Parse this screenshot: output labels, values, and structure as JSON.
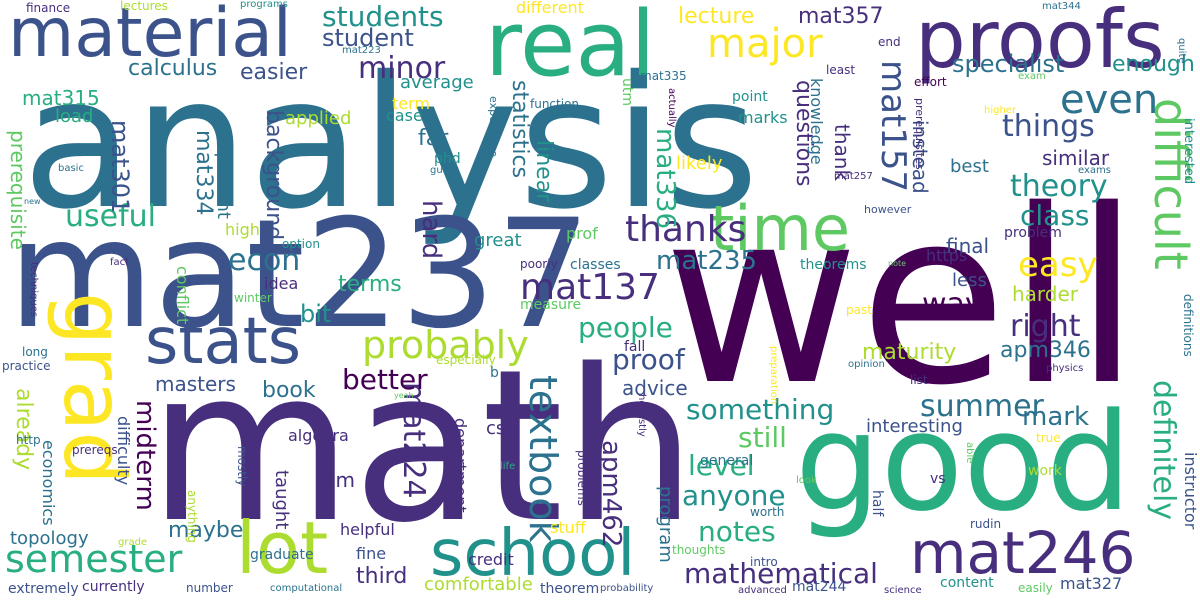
{
  "colors": {
    "background": "#ffffff",
    "palette": [
      "#440154",
      "#472f7d",
      "#3b528b",
      "#2c728e",
      "#21918c",
      "#28ae80",
      "#5ec962",
      "#addc30",
      "#fde725"
    ]
  },
  "words": [
    {
      "text": "analysis"
    },
    {
      "text": "well"
    },
    {
      "text": "math"
    },
    {
      "text": "mat237"
    },
    {
      "text": "good"
    },
    {
      "text": "real"
    },
    {
      "text": "proofs"
    },
    {
      "text": "material"
    },
    {
      "text": "time"
    },
    {
      "text": "grad"
    },
    {
      "text": "stats"
    },
    {
      "text": "lot"
    },
    {
      "text": "school"
    },
    {
      "text": "mat246"
    },
    {
      "text": "difficult"
    },
    {
      "text": "major"
    },
    {
      "text": "students"
    },
    {
      "text": "even"
    },
    {
      "text": "easy"
    },
    {
      "text": "probably"
    },
    {
      "text": "semester"
    },
    {
      "text": "mat137"
    },
    {
      "text": "textbook"
    },
    {
      "text": "thanks"
    },
    {
      "text": "things"
    },
    {
      "text": "theory"
    },
    {
      "text": "mat157"
    },
    {
      "text": "useful"
    },
    {
      "text": "econ"
    },
    {
      "text": "minor"
    },
    {
      "text": "student"
    },
    {
      "text": "calculus"
    },
    {
      "text": "easier"
    },
    {
      "text": "specialist"
    },
    {
      "text": "enough"
    },
    {
      "text": "lecture"
    },
    {
      "text": "mat357"
    },
    {
      "text": "mat315"
    },
    {
      "text": "mat301"
    },
    {
      "text": "mat334"
    },
    {
      "text": "mat336"
    },
    {
      "text": "mat235"
    },
    {
      "text": "mat224"
    },
    {
      "text": "apm462"
    },
    {
      "text": "apm346"
    },
    {
      "text": "class"
    },
    {
      "text": "right"
    },
    {
      "text": "way"
    },
    {
      "text": "people"
    },
    {
      "text": "proof"
    },
    {
      "text": "better"
    },
    {
      "text": "summer"
    },
    {
      "text": "something"
    },
    {
      "text": "still"
    },
    {
      "text": "level"
    },
    {
      "text": "anyone"
    },
    {
      "text": "notes"
    },
    {
      "text": "mathematical"
    },
    {
      "text": "definitely"
    },
    {
      "text": "mark"
    },
    {
      "text": "harder"
    },
    {
      "text": "maturity"
    },
    {
      "text": "midterm"
    },
    {
      "text": "hard"
    },
    {
      "text": "background"
    },
    {
      "text": "terms"
    },
    {
      "text": "bit"
    },
    {
      "text": "book"
    },
    {
      "text": "masters"
    },
    {
      "text": "topology"
    },
    {
      "text": "third"
    },
    {
      "text": "maybe"
    },
    {
      "text": "already"
    },
    {
      "text": "prerequisite"
    },
    {
      "text": "far"
    },
    {
      "text": "linear"
    },
    {
      "text": "statistics"
    },
    {
      "text": "questions"
    },
    {
      "text": "similar"
    },
    {
      "text": "instead"
    },
    {
      "text": "knowledge"
    },
    {
      "text": "thank"
    },
    {
      "text": "likely"
    },
    {
      "text": "marks"
    },
    {
      "text": "final"
    },
    {
      "text": "best"
    },
    {
      "text": "less"
    },
    {
      "text": "https"
    },
    {
      "text": "interesting"
    },
    {
      "text": "advice"
    },
    {
      "text": "algebra"
    },
    {
      "text": "difficulty"
    },
    {
      "text": "economics"
    },
    {
      "text": "important"
    },
    {
      "text": "conflict"
    },
    {
      "text": "applied"
    },
    {
      "text": "average"
    },
    {
      "text": "term"
    },
    {
      "text": "case"
    },
    {
      "text": "load"
    },
    {
      "text": "high"
    },
    {
      "text": "idea"
    },
    {
      "text": "great"
    },
    {
      "text": "prof"
    },
    {
      "text": "classes"
    },
    {
      "text": "measure"
    },
    {
      "text": "problem"
    },
    {
      "text": "theorems"
    },
    {
      "text": "fall"
    },
    {
      "text": "cs"
    },
    {
      "text": "im"
    },
    {
      "text": "taught"
    },
    {
      "text": "graduate"
    },
    {
      "text": "helpful"
    },
    {
      "text": "credit"
    },
    {
      "text": "stuff"
    },
    {
      "text": "fine"
    },
    {
      "text": "department"
    },
    {
      "text": "program"
    },
    {
      "text": "general"
    },
    {
      "text": "content"
    },
    {
      "text": "instructor"
    },
    {
      "text": "mat327"
    },
    {
      "text": "mat244"
    },
    {
      "text": "comfortable"
    },
    {
      "text": "theorem"
    },
    {
      "text": "extremely"
    },
    {
      "text": "currently"
    },
    {
      "text": "different"
    },
    {
      "text": "finance"
    },
    {
      "text": "lectures"
    },
    {
      "text": "programs"
    },
    {
      "text": "mat344"
    },
    {
      "text": "end"
    },
    {
      "text": "mat223"
    },
    {
      "text": "utm"
    },
    {
      "text": "function"
    },
    {
      "text": "mat335"
    },
    {
      "text": "point"
    },
    {
      "text": "least"
    },
    {
      "text": "effort"
    },
    {
      "text": "exam"
    },
    {
      "text": "quite"
    },
    {
      "text": "actually"
    },
    {
      "text": "prerequisites"
    },
    {
      "text": "higher"
    },
    {
      "text": "exams"
    },
    {
      "text": "interested"
    },
    {
      "text": "mat257"
    },
    {
      "text": "however"
    },
    {
      "text": "experience"
    },
    {
      "text": "phd"
    },
    {
      "text": "guess"
    },
    {
      "text": "basic"
    },
    {
      "text": "new"
    },
    {
      "text": "fact"
    },
    {
      "text": "techniques"
    },
    {
      "text": "r"
    },
    {
      "text": "winter"
    },
    {
      "text": "option"
    },
    {
      "text": "poorly"
    },
    {
      "text": "note"
    },
    {
      "text": "past"
    },
    {
      "text": "long"
    },
    {
      "text": "practice"
    },
    {
      "text": "http"
    },
    {
      "text": "especially"
    },
    {
      "text": "b"
    },
    {
      "text": "yeah"
    },
    {
      "text": "preparation"
    },
    {
      "text": "opinion"
    },
    {
      "text": "list"
    },
    {
      "text": "physics"
    },
    {
      "text": "definitions"
    },
    {
      "text": "prereqs"
    },
    {
      "text": "mostly"
    },
    {
      "text": "life"
    },
    {
      "text": "bad"
    },
    {
      "text": "honestly"
    },
    {
      "text": "problems"
    },
    {
      "text": "able"
    },
    {
      "text": "look"
    },
    {
      "text": "true"
    },
    {
      "text": "work"
    },
    {
      "text": "vs"
    },
    {
      "text": "half"
    },
    {
      "text": "worth"
    },
    {
      "text": "rudin"
    },
    {
      "text": "grade"
    },
    {
      "text": "thoughts"
    },
    {
      "text": "intro"
    },
    {
      "text": "number"
    },
    {
      "text": "computational"
    },
    {
      "text": "probability"
    },
    {
      "text": "advanced"
    },
    {
      "text": "science"
    },
    {
      "text": "easily"
    },
    {
      "text": "anything"
    }
  ]
}
